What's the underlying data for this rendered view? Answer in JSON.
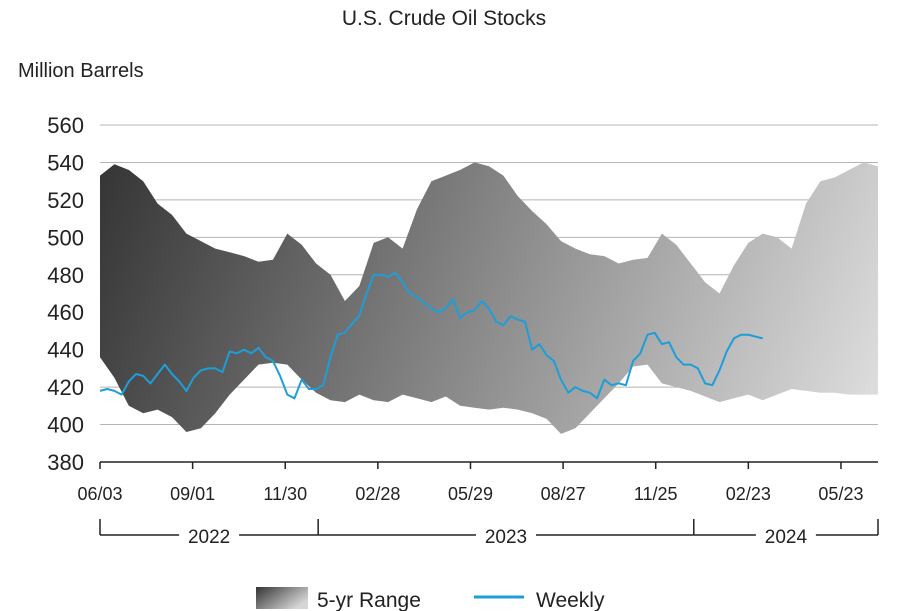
{
  "chart_data": {
    "type": "area",
    "title": "U.S. Crude Oil Stocks",
    "ylabel": "Million Barrels",
    "xlabel": "",
    "ylim": [
      380,
      560
    ],
    "yticks": [
      380,
      400,
      420,
      440,
      460,
      480,
      500,
      520,
      540,
      560
    ],
    "grid": true,
    "legend_position": "bottom-center",
    "x_range": [
      "2022-06-03",
      "2024-06-28"
    ],
    "xticks": [
      {
        "date": "2022-06-03",
        "label": "06/03"
      },
      {
        "date": "2022-09-01",
        "label": "09/01"
      },
      {
        "date": "2022-11-30",
        "label": "11/30"
      },
      {
        "date": "2023-02-28",
        "label": "02/28"
      },
      {
        "date": "2023-05-29",
        "label": "05/29"
      },
      {
        "date": "2023-08-27",
        "label": "08/27"
      },
      {
        "date": "2023-11-25",
        "label": "11/25"
      },
      {
        "date": "2024-02-23",
        "label": "02/23"
      },
      {
        "date": "2024-05-23",
        "label": "05/23"
      }
    ],
    "years": [
      {
        "label": "2022",
        "start": "2022-06-03",
        "end": "2023-01-01"
      },
      {
        "label": "2023",
        "start": "2023-01-01",
        "end": "2024-01-01"
      },
      {
        "label": "2024",
        "start": "2024-01-01",
        "end": "2024-06-28"
      }
    ],
    "series": [
      {
        "name": "5-yr Range",
        "kind": "range",
        "color_dark": "#333333",
        "color_light": "#e0e0e0",
        "x": [
          "2022-06-03",
          "2022-06-17",
          "2022-07-01",
          "2022-07-15",
          "2022-07-29",
          "2022-08-12",
          "2022-08-26",
          "2022-09-09",
          "2022-09-23",
          "2022-10-07",
          "2022-10-21",
          "2022-11-04",
          "2022-11-18",
          "2022-12-02",
          "2022-12-16",
          "2022-12-30",
          "2023-01-13",
          "2023-01-27",
          "2023-02-10",
          "2023-02-24",
          "2023-03-10",
          "2023-03-24",
          "2023-04-07",
          "2023-04-21",
          "2023-05-05",
          "2023-05-19",
          "2023-06-02",
          "2023-06-16",
          "2023-06-30",
          "2023-07-14",
          "2023-07-28",
          "2023-08-11",
          "2023-08-25",
          "2023-09-08",
          "2023-09-22",
          "2023-10-06",
          "2023-10-20",
          "2023-11-03",
          "2023-11-17",
          "2023-12-01",
          "2023-12-15",
          "2023-12-29",
          "2024-01-12",
          "2024-01-26",
          "2024-02-09",
          "2024-02-23",
          "2024-03-08",
          "2024-03-22",
          "2024-04-05",
          "2024-04-19",
          "2024-05-03",
          "2024-05-17",
          "2024-05-31",
          "2024-06-14",
          "2024-06-28"
        ],
        "high": [
          533,
          539,
          536,
          530,
          518,
          512,
          502,
          498,
          494,
          492,
          490,
          487,
          488,
          502,
          496,
          486,
          480,
          466,
          474,
          497,
          500,
          494,
          515,
          530,
          533,
          536,
          540,
          538,
          533,
          522,
          514,
          507,
          498,
          494,
          491,
          490,
          486,
          488,
          489,
          502,
          496,
          486,
          476,
          470,
          485,
          497,
          502,
          500,
          494,
          518,
          530,
          532,
          536,
          540,
          538
        ],
        "low": [
          436,
          425,
          410,
          406,
          408,
          404,
          396,
          398,
          406,
          416,
          424,
          432,
          433,
          432,
          424,
          417,
          413,
          412,
          416,
          413,
          412,
          416,
          414,
          412,
          415,
          410,
          409,
          408,
          409,
          408,
          406,
          403,
          395,
          398,
          406,
          414,
          422,
          431,
          432,
          422,
          420,
          418,
          415,
          412,
          414,
          416,
          413,
          416,
          419,
          418,
          417,
          417,
          416,
          416,
          416
        ]
      },
      {
        "name": "Weekly",
        "kind": "line",
        "color": "#1e9ed8",
        "x": [
          "2022-06-03",
          "2022-06-10",
          "2022-06-17",
          "2022-06-24",
          "2022-07-01",
          "2022-07-08",
          "2022-07-15",
          "2022-07-22",
          "2022-07-29",
          "2022-08-05",
          "2022-08-12",
          "2022-08-19",
          "2022-08-26",
          "2022-09-02",
          "2022-09-09",
          "2022-09-16",
          "2022-09-23",
          "2022-09-30",
          "2022-10-07",
          "2022-10-14",
          "2022-10-21",
          "2022-10-28",
          "2022-11-04",
          "2022-11-11",
          "2022-11-18",
          "2022-11-25",
          "2022-12-02",
          "2022-12-09",
          "2022-12-16",
          "2022-12-23",
          "2022-12-30",
          "2023-01-06",
          "2023-01-13",
          "2023-01-20",
          "2023-01-27",
          "2023-02-03",
          "2023-02-10",
          "2023-02-17",
          "2023-02-24",
          "2023-03-03",
          "2023-03-10",
          "2023-03-17",
          "2023-03-24",
          "2023-03-31",
          "2023-04-07",
          "2023-04-14",
          "2023-04-21",
          "2023-04-28",
          "2023-05-05",
          "2023-05-12",
          "2023-05-19",
          "2023-05-26",
          "2023-06-02",
          "2023-06-09",
          "2023-06-16",
          "2023-06-23",
          "2023-06-30",
          "2023-07-07",
          "2023-07-14",
          "2023-07-21",
          "2023-07-28",
          "2023-08-04",
          "2023-08-11",
          "2023-08-18",
          "2023-08-25",
          "2023-09-01",
          "2023-09-08",
          "2023-09-15",
          "2023-09-22",
          "2023-09-29",
          "2023-10-06",
          "2023-10-13",
          "2023-10-20",
          "2023-10-27",
          "2023-11-03",
          "2023-11-10",
          "2023-11-17",
          "2023-11-24",
          "2023-12-01",
          "2023-12-08",
          "2023-12-15",
          "2023-12-22",
          "2023-12-29",
          "2024-01-05",
          "2024-01-12",
          "2024-01-19",
          "2024-01-26",
          "2024-02-02",
          "2024-02-09",
          "2024-02-16",
          "2024-02-23",
          "2024-03-01",
          "2024-03-08"
        ],
        "values": [
          418,
          419,
          418,
          416,
          423,
          427,
          426,
          422,
          427,
          432,
          427,
          423,
          418,
          425,
          429,
          430,
          430,
          428,
          439,
          438,
          440,
          438,
          441,
          436,
          434,
          426,
          416,
          414,
          424,
          419,
          419,
          421,
          436,
          448,
          449,
          454,
          458,
          470,
          480,
          480,
          479,
          481,
          476,
          470,
          468,
          465,
          462,
          460,
          462,
          467,
          457,
          460,
          461,
          466,
          462,
          455,
          453,
          458,
          456,
          455,
          440,
          443,
          437,
          434,
          424,
          417,
          420,
          418,
          417,
          414,
          424,
          421,
          422,
          421,
          434,
          438,
          448,
          449,
          443,
          444,
          436,
          432,
          432,
          430,
          422,
          421,
          429,
          439,
          446,
          448,
          448,
          447,
          446
        ]
      }
    ]
  },
  "legend": {
    "items": [
      {
        "label": "5-yr Range"
      },
      {
        "label": "Weekly"
      }
    ]
  }
}
